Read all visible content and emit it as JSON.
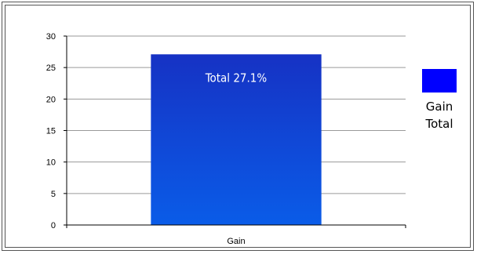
{
  "chart_data": {
    "type": "bar",
    "categories": [
      "Gain"
    ],
    "series": [
      {
        "name": "Total",
        "values": [
          27.1
        ],
        "color": "#1a3fd6"
      }
    ],
    "data_labels": [
      "Total 27.1%"
    ],
    "ylim": [
      0,
      30
    ],
    "yticks": [
      0,
      5,
      10,
      15,
      20,
      25,
      30
    ],
    "grid": true,
    "legend": {
      "placement": "right",
      "lines": [
        "Gain",
        "Total"
      ],
      "swatch_color": "#0000ff"
    },
    "colors": {
      "bar_top": "#1632c4",
      "bar_bottom": "#0a5ce8",
      "gridline": "#9a9a9a",
      "axis": "#000000"
    }
  }
}
